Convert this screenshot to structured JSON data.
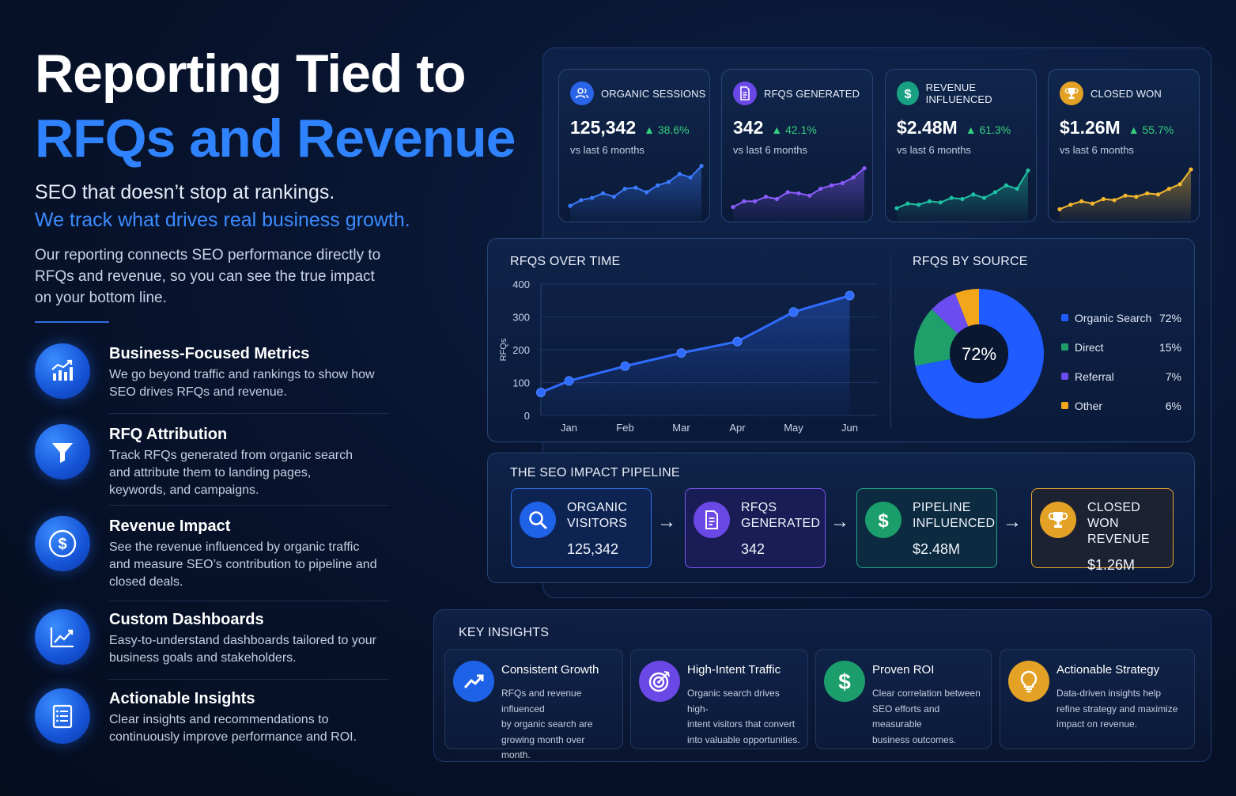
{
  "hero": {
    "title_line1": "Reporting Tied to",
    "title_line2": "RFQs and Revenue",
    "subtitle_line1": "SEO that doesn’t stop at rankings.",
    "subtitle_line2": "We track what drives real business growth.",
    "description": "Our reporting connects SEO performance directly to RFQs and revenue, so you can see the true impact on your bottom line."
  },
  "features": [
    {
      "title": "Business-Focused Metrics",
      "body": "We go beyond traffic and rankings to show how SEO drives RFQs and revenue.",
      "icon": "bar-chart-icon"
    },
    {
      "title": "RFQ Attribution",
      "body": "Track RFQs generated from organic search and attribute them to landing pages, keywords, and campaigns.",
      "icon": "funnel-icon"
    },
    {
      "title": "Revenue Impact",
      "body": "See the revenue influenced by organic traffic and measure SEO’s contribution to pipeline and closed deals.",
      "icon": "dollar-icon"
    },
    {
      "title": "Custom Dashboards",
      "body": "Easy-to-understand dashboards tailored to your business goals and stakeholders.",
      "icon": "trend-chart-icon"
    },
    {
      "title": "Actionable Insights",
      "body": "Clear insights and recommendations to continuously improve performance and ROI.",
      "icon": "checklist-icon"
    }
  ],
  "kpis": [
    {
      "label": "ORGANIC SESSIONS",
      "value": "125,342",
      "delta": "▲ 38.6%",
      "comparison": "vs last 6 months",
      "color": "#3a7bff",
      "icon": "users-icon",
      "spark": [
        22,
        32,
        36,
        44,
        38,
        52,
        54,
        46,
        58,
        64,
        78,
        72,
        92
      ]
    },
    {
      "label": "RFQS GENERATED",
      "value": "342",
      "delta": "▲ 42.1%",
      "comparison": "vs last 6 months",
      "color": "#8a5cff",
      "icon": "document-icon",
      "spark": [
        20,
        30,
        30,
        38,
        34,
        46,
        44,
        40,
        52,
        58,
        62,
        72,
        88
      ]
    },
    {
      "label": "REVENUE INFLUENCED",
      "value": "$2.48M",
      "delta": "▲ 61.3%",
      "comparison": "vs last 6 months",
      "color": "#1fc1a3",
      "icon": "dollar-icon",
      "spark": [
        18,
        26,
        24,
        30,
        28,
        36,
        34,
        42,
        36,
        46,
        58,
        52,
        84
      ]
    },
    {
      "label": "CLOSED WON",
      "value": "$1.26M",
      "delta": "▲ 55.7%",
      "comparison": "vs last 6 months",
      "color": "#f5b82e",
      "icon": "trophy-icon",
      "spark": [
        16,
        24,
        30,
        26,
        34,
        32,
        40,
        38,
        44,
        42,
        52,
        60,
        86
      ]
    }
  ],
  "rfqs_over_time": {
    "title": "RFQS OVER TIME",
    "ylabel": "RFQs",
    "yticks": [
      "400",
      "300",
      "200",
      "100",
      "0"
    ]
  },
  "rfqs_by_source": {
    "title": "RFQS BY SOURCE",
    "center_label": "72%"
  },
  "chart_data": [
    {
      "type": "line",
      "title": "RFQS OVER TIME",
      "xlabel": "",
      "ylabel": "RFQs",
      "categories": [
        "Jan",
        "Feb",
        "Mar",
        "Apr",
        "May",
        "Jun"
      ],
      "x": [
        0.0,
        0.5,
        1.5,
        2.5,
        3.5,
        4.5,
        5.5
      ],
      "values": [
        70,
        105,
        150,
        190,
        225,
        315,
        365
      ],
      "ylim": [
        0,
        400
      ],
      "yticks": [
        0,
        100,
        200,
        300,
        400
      ],
      "color": "#2f6bff",
      "grid": true
    },
    {
      "type": "pie",
      "title": "RFQS BY SOURCE",
      "legend_position": "right",
      "slices": [
        {
          "name": "Organic Search",
          "value": 72,
          "label": "72%",
          "color": "#1f5bff"
        },
        {
          "name": "Direct",
          "value": 15,
          "label": "15%",
          "color": "#1fa06a"
        },
        {
          "name": "Referral",
          "value": 7,
          "label": "7%",
          "color": "#6b4cf0"
        },
        {
          "name": "Other",
          "value": 6,
          "label": "6%",
          "color": "#f2a71b"
        }
      ]
    }
  ],
  "pipeline": {
    "title": "THE SEO IMPACT PIPELINE",
    "steps": [
      {
        "label_line1": "ORGANIC",
        "label_line2": "VISITORS",
        "value": "125,342",
        "border": "#2f6fe0",
        "icon_bg": "#1e62e8",
        "icon": "search-icon"
      },
      {
        "label_line1": "RFQS",
        "label_line2": "GENERATED",
        "value": "342",
        "border": "#7a56f0",
        "icon_bg": "#6a48e6",
        "icon": "document-icon"
      },
      {
        "label_line1": "PIPELINE",
        "label_line2": "INFLUENCED",
        "value": "$2.48M",
        "border": "#1fa88a",
        "icon_bg": "#1b9d6c",
        "icon": "dollar-icon"
      },
      {
        "label_line1": "CLOSED WON",
        "label_line2": "REVENUE",
        "value": "$1.26M",
        "border": "#e6a52a",
        "icon_bg": "#e3a226",
        "icon": "trophy-icon"
      }
    ],
    "arrow": "→"
  },
  "insights": {
    "title": "KEY INSIGHTS",
    "cards": [
      {
        "title": "Consistent Growth",
        "body_lines": [
          "RFQs and revenue influenced",
          "by organic search are",
          "growing month over month."
        ],
        "icon_bg": "#1e62e8",
        "icon": "trend-arrow-icon"
      },
      {
        "title": "High-Intent Traffic",
        "body_lines": [
          "Organic search drives high-",
          "intent visitors that convert",
          "into valuable opportunities."
        ],
        "icon_bg": "#6a48e6",
        "icon": "target-icon"
      },
      {
        "title": "Proven ROI",
        "body_lines": [
          "Clear correlation between",
          "SEO efforts and measurable",
          "business outcomes."
        ],
        "icon_bg": "#1b9d6c",
        "icon": "dollar-icon"
      },
      {
        "title": "Actionable Strategy",
        "body_lines": [
          "Data-driven insights help",
          "refine strategy and maximize",
          "impact on revenue."
        ],
        "icon_bg": "#e3a226",
        "icon": "lightbulb-icon"
      }
    ]
  }
}
